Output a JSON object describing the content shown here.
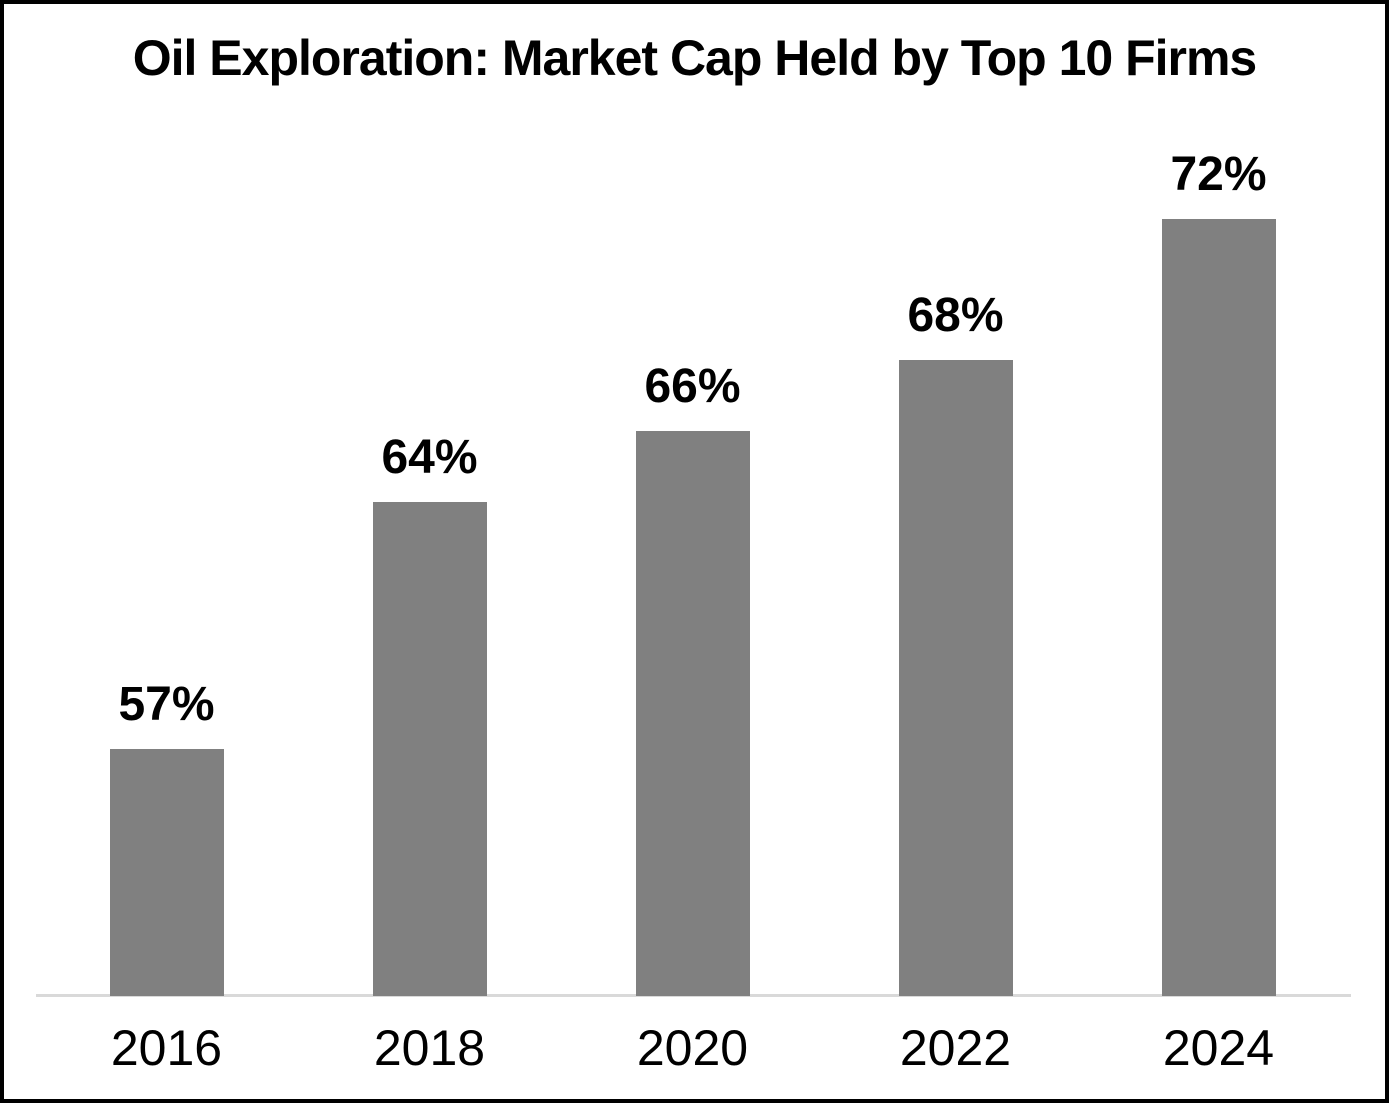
{
  "chart_data": {
    "type": "bar",
    "title": "Oil Exploration: Market Cap Held by Top 10 Firms",
    "categories": [
      "2016",
      "2018",
      "2020",
      "2022",
      "2024"
    ],
    "values": [
      57,
      64,
      66,
      68,
      72
    ],
    "value_labels": [
      "57%",
      "64%",
      "66%",
      "68%",
      "72%"
    ],
    "unit": "%",
    "xlabel": "",
    "ylabel": "",
    "ylim": [
      50,
      75
    ],
    "grid": false,
    "legend": false,
    "y_axis_visible": false,
    "colors": {
      "bar": "#808080",
      "axis_line": "#d9d9d9",
      "text": "#000000",
      "background": "#ffffff",
      "border": "#000000"
    }
  }
}
